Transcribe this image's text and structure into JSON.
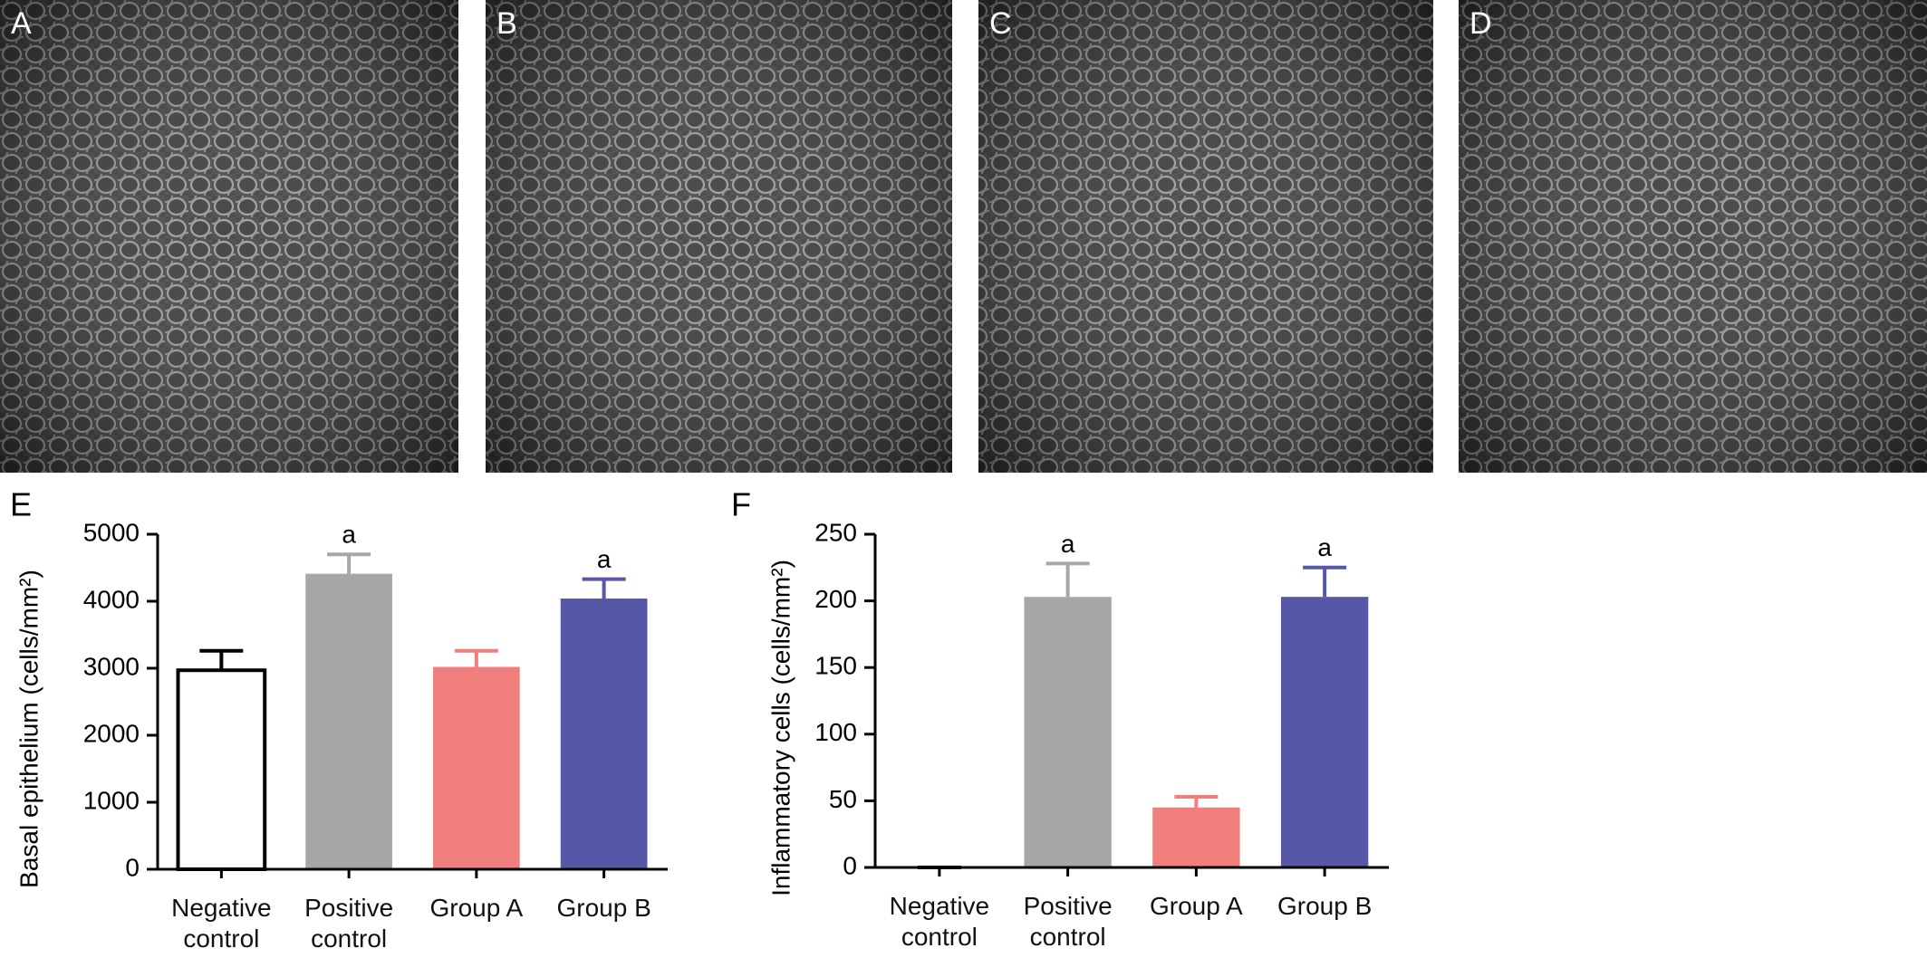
{
  "panels": [
    "A",
    "B",
    "C",
    "D"
  ],
  "chart_data": [
    {
      "type": "bar",
      "panel_label": "E",
      "y_label": "Basal epithelium (cells/mm²)",
      "categories": [
        "Negative control",
        "Positive control",
        "Group A",
        "Group B"
      ],
      "values": [
        2970,
        4410,
        3020,
        4040
      ],
      "errors": [
        290,
        290,
        240,
        290
      ],
      "colors": [
        "#ffffff",
        "#a7a6a8",
        "#f07f7e",
        "#5757a8"
      ],
      "value_annotations": [
        null,
        "a",
        null,
        "a"
      ],
      "ylim": [
        0,
        5000
      ],
      "yticks": [
        0,
        1000,
        2000,
        3000,
        4000,
        5000
      ],
      "grid": false
    },
    {
      "type": "bar",
      "panel_label": "F",
      "y_label": "Inflammatory cells (cells/mm²)",
      "categories": [
        "Negative control",
        "Positive control",
        "Group A",
        "Group B"
      ],
      "values": [
        0,
        203,
        45,
        203
      ],
      "errors": [
        0,
        25,
        8,
        22
      ],
      "colors": [
        "#ffffff",
        "#a7a6a8",
        "#f07f7e",
        "#5757a8"
      ],
      "value_annotations": [
        null,
        "a",
        null,
        "a"
      ],
      "ylim": [
        0,
        250
      ],
      "yticks": [
        0,
        50,
        100,
        150,
        200,
        250
      ],
      "grid": false
    }
  ]
}
